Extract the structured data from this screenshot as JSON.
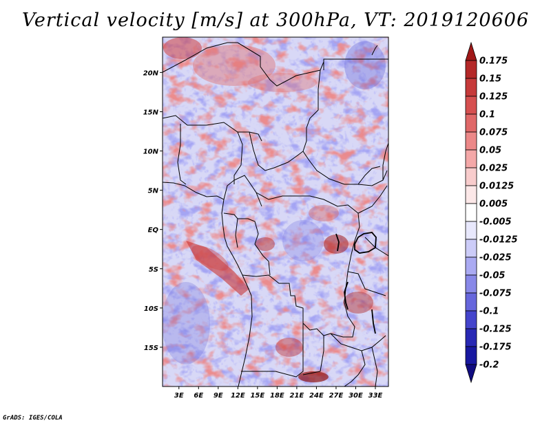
{
  "title": "Vertical velocity [m/s] at 300hPa, VT: 2019120606",
  "credit": "GrADS: IGES/COLA",
  "map": {
    "region": "Central Africa",
    "variable": "vertical velocity",
    "level": "300hPa",
    "units": "m/s",
    "lat_labels": [
      "20N",
      "15N",
      "10N",
      "5N",
      "EQ",
      "5S",
      "10S",
      "15S"
    ],
    "lat_values": [
      20,
      15,
      10,
      5,
      0,
      -5,
      -10,
      -15
    ],
    "lon_labels": [
      "3E",
      "6E",
      "9E",
      "12E",
      "15E",
      "18E",
      "21E",
      "24E",
      "27E",
      "30E",
      "33E"
    ],
    "lon_values": [
      3,
      6,
      9,
      12,
      15,
      18,
      21,
      24,
      27,
      30,
      33
    ],
    "lon_range": [
      0.5,
      35
    ],
    "lat_range": [
      -20,
      24.5
    ]
  },
  "colorbar": {
    "levels": [
      "0.175",
      "0.15",
      "0.125",
      "0.1",
      "0.075",
      "0.05",
      "0.025",
      "0.0125",
      "0.005",
      "-0.005",
      "-0.0125",
      "-0.025",
      "-0.05",
      "-0.075",
      "-0.1",
      "-0.125",
      "-0.175",
      "-0.2"
    ],
    "colors": [
      "#a01818",
      "#b42828",
      "#c63a3a",
      "#d65050",
      "#e06868",
      "#ec8888",
      "#f4a8a8",
      "#f8cccc",
      "#fce8e8",
      "#ffffff",
      "#e8e8fc",
      "#ccccf8",
      "#aaaaf2",
      "#8888e8",
      "#6666dc",
      "#4444cc",
      "#2828b4",
      "#1818a0",
      "#100c80"
    ]
  }
}
